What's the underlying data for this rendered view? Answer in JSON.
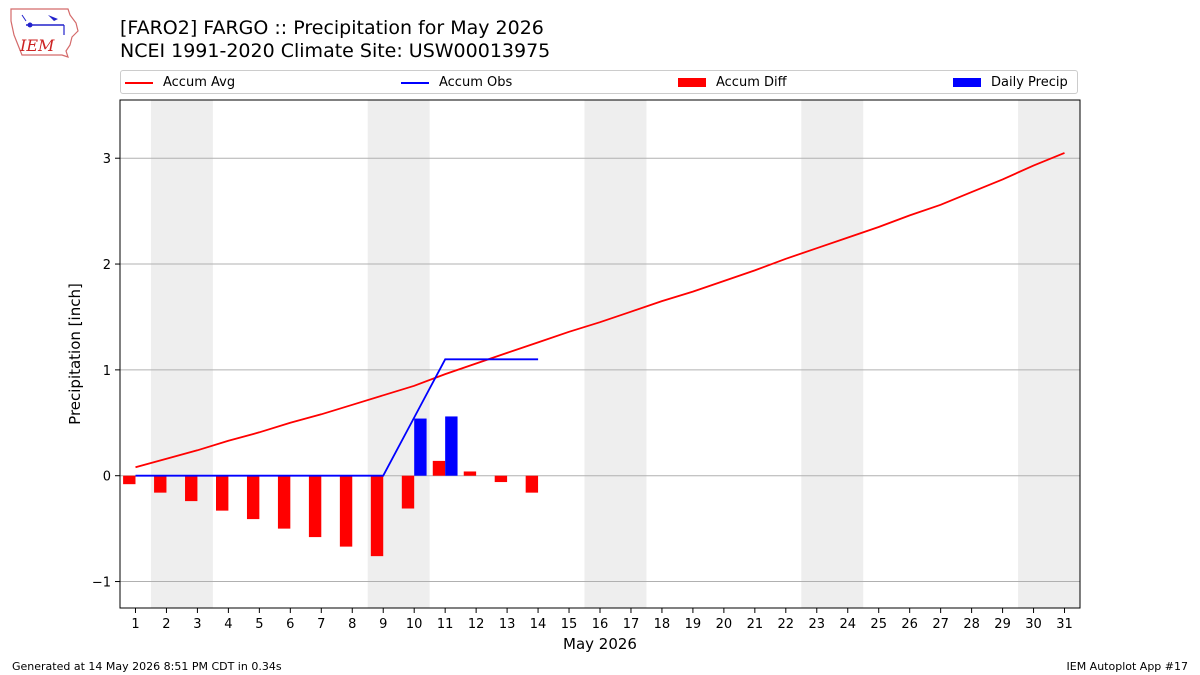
{
  "header": {
    "logo_text": "IEM",
    "title_line1": "[FARO2] FARGO :: Precipitation for May 2026",
    "title_line2": "NCEI 1991-2020 Climate Site: USW00013975"
  },
  "footer": {
    "generated": "Generated at 14 May 2026 8:51 PM CDT in 0.34s",
    "app": "IEM Autoplot App #17"
  },
  "colors": {
    "accum_avg": "#ff0000",
    "accum_obs": "#0000ff",
    "accum_diff": "#ff0000",
    "daily_precip": "#0000ff",
    "weekend_shade": "#eeeeee"
  },
  "chart_data": {
    "type": "bar",
    "xlabel": "May 2026",
    "ylabel": "Precipitation [inch]",
    "x": [
      1,
      2,
      3,
      4,
      5,
      6,
      7,
      8,
      9,
      10,
      11,
      12,
      13,
      14,
      15,
      16,
      17,
      18,
      19,
      20,
      21,
      22,
      23,
      24,
      25,
      26,
      27,
      28,
      29,
      30,
      31
    ],
    "xlim": [
      0.5,
      31.5
    ],
    "ylim": [
      -1.25,
      3.55
    ],
    "yticks": [
      -1,
      0,
      1,
      2,
      3
    ],
    "ytick_labels": [
      "−1",
      "0",
      "1",
      "2",
      "3"
    ],
    "grid": "horizontal",
    "legend_position": "top",
    "weekend_shading": [
      [
        2,
        3
      ],
      [
        9,
        10
      ],
      [
        16,
        17
      ],
      [
        23,
        24
      ],
      [
        30,
        31
      ]
    ],
    "series": [
      {
        "name": "Accum Avg",
        "kind": "line",
        "x": [
          1,
          2,
          3,
          4,
          5,
          6,
          7,
          8,
          9,
          10,
          11,
          12,
          13,
          14,
          15,
          16,
          17,
          18,
          19,
          20,
          21,
          22,
          23,
          24,
          25,
          26,
          27,
          28,
          29,
          30,
          31
        ],
        "values": [
          0.08,
          0.16,
          0.24,
          0.33,
          0.41,
          0.5,
          0.58,
          0.67,
          0.76,
          0.85,
          0.96,
          1.06,
          1.16,
          1.26,
          1.36,
          1.45,
          1.55,
          1.65,
          1.74,
          1.84,
          1.94,
          2.05,
          2.15,
          2.25,
          2.35,
          2.46,
          2.56,
          2.68,
          2.8,
          2.93,
          3.05
        ]
      },
      {
        "name": "Accum Obs",
        "kind": "line",
        "x": [
          1,
          2,
          3,
          4,
          5,
          6,
          7,
          8,
          9,
          10,
          11,
          12,
          13,
          14
        ],
        "values": [
          0,
          0,
          0,
          0,
          0,
          0,
          0,
          0,
          0,
          0.55,
          1.1,
          1.1,
          1.1,
          1.1
        ]
      },
      {
        "name": "Accum Diff",
        "kind": "bar",
        "x": [
          1,
          2,
          3,
          4,
          5,
          6,
          7,
          8,
          9,
          10,
          11,
          12,
          13,
          14
        ],
        "values": [
          -0.08,
          -0.16,
          -0.24,
          -0.33,
          -0.41,
          -0.5,
          -0.58,
          -0.67,
          -0.76,
          -0.31,
          0.14,
          0.04,
          -0.06,
          -0.16
        ]
      },
      {
        "name": "Daily Precip",
        "kind": "bar",
        "x": [
          1,
          2,
          3,
          4,
          5,
          6,
          7,
          8,
          9,
          10,
          11,
          12,
          13,
          14
        ],
        "values": [
          0,
          0,
          0,
          0,
          0,
          0,
          0,
          0,
          0,
          0.54,
          0.56,
          0,
          0,
          0
        ]
      }
    ]
  }
}
